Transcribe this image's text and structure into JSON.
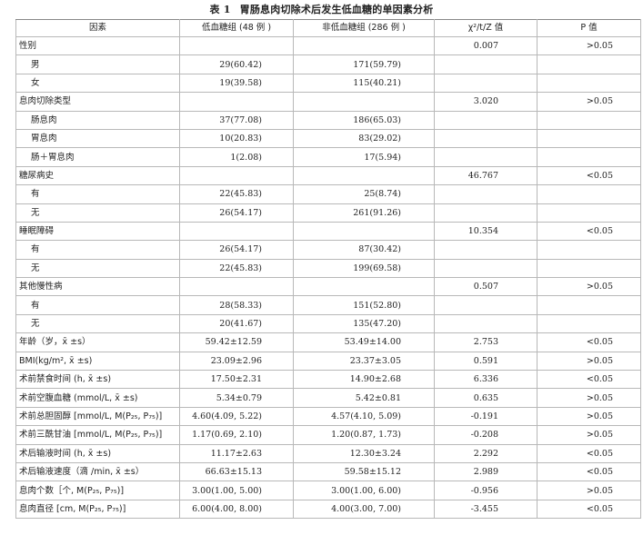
{
  "caption": {
    "number": "表 1",
    "title": "胃肠息肉切除术后发生低血糖的单因素分析"
  },
  "headers": [
    "因素",
    "低血糖组 (48 例 )",
    "非低血糖组 (286 例 )",
    "χ²/t/Z 值",
    "P 值"
  ],
  "rows": [
    {
      "factor": "性别",
      "sub": false,
      "g1": "",
      "g2": "",
      "stat": "0.007",
      "p": ">0.05"
    },
    {
      "factor": "男",
      "sub": true,
      "g1": "29(60.42)",
      "g2": "171(59.79)",
      "stat": "",
      "p": ""
    },
    {
      "factor": "女",
      "sub": true,
      "g1": "19(39.58)",
      "g2": "115(40.21)",
      "stat": "",
      "p": ""
    },
    {
      "factor": "息肉切除类型",
      "sub": false,
      "g1": "",
      "g2": "",
      "stat": "3.020",
      "p": ">0.05"
    },
    {
      "factor": "肠息肉",
      "sub": true,
      "g1": "37(77.08)",
      "g2": "186(65.03)",
      "stat": "",
      "p": ""
    },
    {
      "factor": "胃息肉",
      "sub": true,
      "g1": "10(20.83)",
      "g2": "83(29.02)",
      "stat": "",
      "p": ""
    },
    {
      "factor": "肠＋胃息肉",
      "sub": true,
      "g1": "1(2.08)",
      "g2": "17(5.94)",
      "stat": "",
      "p": ""
    },
    {
      "factor": "糖尿病史",
      "sub": false,
      "g1": "",
      "g2": "",
      "stat": "46.767",
      "p": "<0.05"
    },
    {
      "factor": "有",
      "sub": true,
      "g1": "22(45.83)",
      "g2": "25(8.74)",
      "stat": "",
      "p": ""
    },
    {
      "factor": "无",
      "sub": true,
      "g1": "26(54.17)",
      "g2": "261(91.26)",
      "stat": "",
      "p": ""
    },
    {
      "factor": "睡眠障碍",
      "sub": false,
      "g1": "",
      "g2": "",
      "stat": "10.354",
      "p": "<0.05"
    },
    {
      "factor": "有",
      "sub": true,
      "g1": "26(54.17)",
      "g2": "87(30.42)",
      "stat": "",
      "p": ""
    },
    {
      "factor": "无",
      "sub": true,
      "g1": "22(45.83)",
      "g2": "199(69.58)",
      "stat": "",
      "p": ""
    },
    {
      "factor": "其他慢性病",
      "sub": false,
      "g1": "",
      "g2": "",
      "stat": "0.507",
      "p": ">0.05"
    },
    {
      "factor": "有",
      "sub": true,
      "g1": "28(58.33)",
      "g2": "151(52.80)",
      "stat": "",
      "p": ""
    },
    {
      "factor": "无",
      "sub": true,
      "g1": "20(41.67)",
      "g2": "135(47.20)",
      "stat": "",
      "p": ""
    },
    {
      "factor": "年龄（岁，x̄ ±s）",
      "sub": false,
      "g1": "59.42±12.59",
      "g2": "53.49±14.00",
      "stat": "2.753",
      "p": "<0.05"
    },
    {
      "factor": "BMI(kg/m², x̄ ±s)",
      "sub": false,
      "g1": "23.09±2.96",
      "g2": "23.37±3.05",
      "stat": "0.591",
      "p": ">0.05"
    },
    {
      "factor": "术前禁食时间 (h, x̄ ±s)",
      "sub": false,
      "g1": "17.50±2.31",
      "g2": "14.90±2.68",
      "stat": "6.336",
      "p": "<0.05"
    },
    {
      "factor": "术前空腹血糖 (mmol/L, x̄ ±s)",
      "sub": false,
      "g1": "5.34±0.79",
      "g2": "5.42±0.81",
      "stat": "0.635",
      "p": ">0.05"
    },
    {
      "factor": "术前总胆固醇 [mmol/L, M(P₂₅, P₇₅)]",
      "sub": false,
      "g1": "4.60(4.09, 5.22)",
      "g2": "4.57(4.10, 5.09)",
      "stat": "-0.191",
      "p": ">0.05"
    },
    {
      "factor": "术前三酰甘油 [mmol/L, M(P₂₅, P₇₅)]",
      "sub": false,
      "g1": "1.17(0.69, 2.10)",
      "g2": "1.20(0.87, 1.73)",
      "stat": "-0.208",
      "p": ">0.05"
    },
    {
      "factor": "术后输液时间 (h, x̄ ±s)",
      "sub": false,
      "g1": "11.17±2.63",
      "g2": "12.30±3.24",
      "stat": "2.292",
      "p": "<0.05"
    },
    {
      "factor": "术后输液速度（滴 /min, x̄ ±s）",
      "sub": false,
      "g1": "66.63±15.13",
      "g2": "59.58±15.12",
      "stat": "2.989",
      "p": "<0.05"
    },
    {
      "factor": "息肉个数［个, M(P₂₅, P₇₅)]",
      "sub": false,
      "g1": "3.00(1.00, 5.00)",
      "g2": "3.00(1.00, 6.00)",
      "stat": "-0.956",
      "p": ">0.05"
    },
    {
      "factor": "息肉直径 [cm, M(P₂₅, P₇₅)]",
      "sub": false,
      "g1": "6.00(4.00, 8.00)",
      "g2": "4.00(3.00, 7.00)",
      "stat": "-3.455",
      "p": "<0.05"
    }
  ]
}
